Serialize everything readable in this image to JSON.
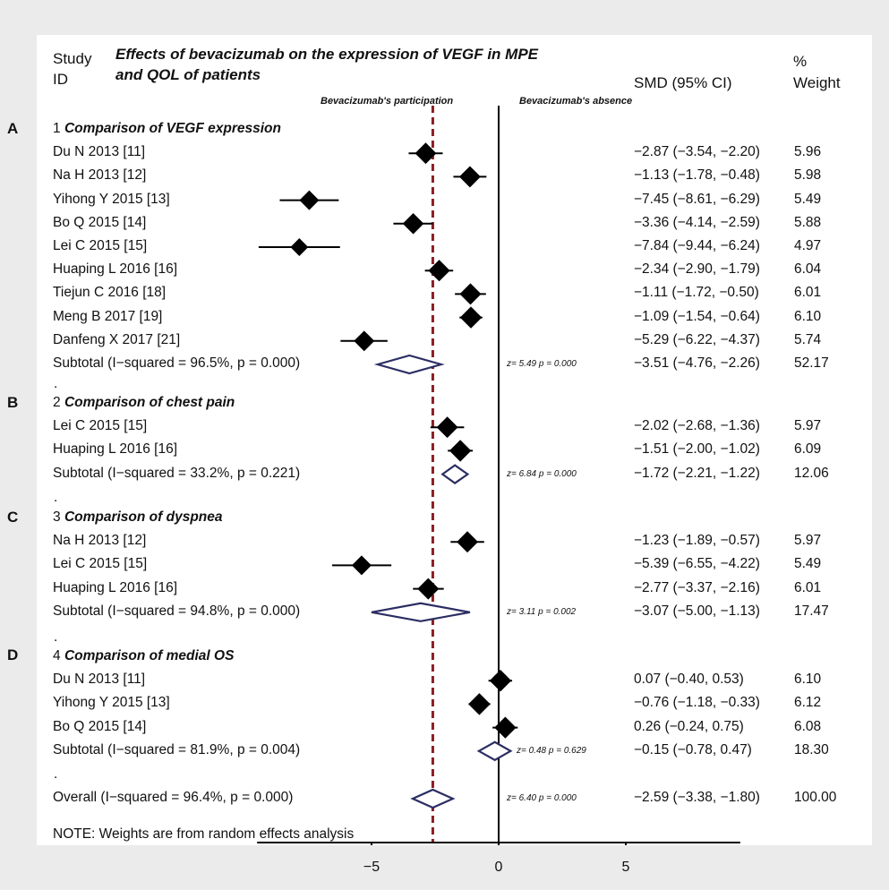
{
  "header": {
    "study_label_1": "Study",
    "study_label_2": "ID",
    "title_line1": "Effects of bevacizumab on the expression of VEGF in MPE",
    "title_line2": "and QOL of patients",
    "smd_label": "SMD (95% CI)",
    "weight_label_1": "%",
    "weight_label_2": "Weight",
    "left_region_label": "Bevacizumab's participation",
    "right_region_label": "Bevacizumab's absence"
  },
  "panel_letters": [
    "A",
    "B",
    "C",
    "D"
  ],
  "dot": ".",
  "note": "NOTE: Weights are from random effects analysis",
  "chart_data": {
    "type": "forest",
    "x_ticks": [
      -5,
      0,
      5
    ],
    "x_tick_labels": [
      "−5",
      "0",
      "5"
    ],
    "xlim": [
      -9.5,
      9.5
    ],
    "null_line": 0,
    "overall_line": -2.59,
    "groups": [
      {
        "letter": "A",
        "number": "1",
        "name": "Comparison of VEGF expression",
        "studies": [
          {
            "label": "Du N 2013 [11]",
            "smd": -2.87,
            "lo": -3.54,
            "hi": -2.2,
            "ci": "−2.87 (−3.54, −2.20)",
            "weight": "5.96"
          },
          {
            "label": "Na H 2013 [12]",
            "smd": -1.13,
            "lo": -1.78,
            "hi": -0.48,
            "ci": "−1.13 (−1.78, −0.48)",
            "weight": "5.98"
          },
          {
            "label": "Yihong Y 2015 [13]",
            "smd": -7.45,
            "lo": -8.61,
            "hi": -6.29,
            "ci": "−7.45 (−8.61, −6.29)",
            "weight": "5.49"
          },
          {
            "label": "Bo Q 2015 [14]",
            "smd": -3.36,
            "lo": -4.14,
            "hi": -2.59,
            "ci": "−3.36 (−4.14, −2.59)",
            "weight": "5.88"
          },
          {
            "label": "Lei C 2015 [15]",
            "smd": -7.84,
            "lo": -9.44,
            "hi": -6.24,
            "ci": "−7.84 (−9.44, −6.24)",
            "weight": "4.97"
          },
          {
            "label": "Huaping L 2016 [16]",
            "smd": -2.34,
            "lo": -2.9,
            "hi": -1.79,
            "ci": "−2.34 (−2.90, −1.79)",
            "weight": "6.04"
          },
          {
            "label": "Tiejun C 2016 [18]",
            "smd": -1.11,
            "lo": -1.72,
            "hi": -0.5,
            "ci": "−1.11 (−1.72, −0.50)",
            "weight": "6.01"
          },
          {
            "label": "Meng B 2017 [19]",
            "smd": -1.09,
            "lo": -1.54,
            "hi": -0.64,
            "ci": "−1.09 (−1.54, −0.64)",
            "weight": "6.10"
          },
          {
            "label": "Danfeng X 2017 [21]",
            "smd": -5.29,
            "lo": -6.22,
            "hi": -4.37,
            "ci": "−5.29 (−6.22, −4.37)",
            "weight": "5.74"
          }
        ],
        "subtotal": {
          "label": "Subtotal  (I−squared = 96.5%, p = 0.000)",
          "smd": -3.51,
          "lo": -4.76,
          "hi": -2.26,
          "ci": "−3.51 (−4.76, −2.26)",
          "weight": "52.17",
          "z": "z=  5.49   p = 0.000"
        }
      },
      {
        "letter": "B",
        "number": "2",
        "name": "Comparison of chest pain",
        "studies": [
          {
            "label": "Lei C 2015 [15]",
            "smd": -2.02,
            "lo": -2.68,
            "hi": -1.36,
            "ci": "−2.02 (−2.68, −1.36)",
            "weight": "5.97"
          },
          {
            "label": "Huaping L 2016 [16]",
            "smd": -1.51,
            "lo": -2.0,
            "hi": -1.02,
            "ci": "−1.51 (−2.00, −1.02)",
            "weight": "6.09"
          }
        ],
        "subtotal": {
          "label": "Subtotal  (I−squared = 33.2%, p = 0.221)",
          "smd": -1.72,
          "lo": -2.21,
          "hi": -1.22,
          "ci": "−1.72 (−2.21, −1.22)",
          "weight": "12.06",
          "z": "z=  6.84   p = 0.000"
        }
      },
      {
        "letter": "C",
        "number": "3",
        "name": "Comparison of dyspnea",
        "studies": [
          {
            "label": "Na H 2013 [12]",
            "smd": -1.23,
            "lo": -1.89,
            "hi": -0.57,
            "ci": "−1.23 (−1.89, −0.57)",
            "weight": "5.97"
          },
          {
            "label": "Lei C 2015 [15]",
            "smd": -5.39,
            "lo": -6.55,
            "hi": -4.22,
            "ci": "−5.39 (−6.55, −4.22)",
            "weight": "5.49"
          },
          {
            "label": "Huaping L 2016 [16]",
            "smd": -2.77,
            "lo": -3.37,
            "hi": -2.16,
            "ci": "−2.77 (−3.37, −2.16)",
            "weight": "6.01"
          }
        ],
        "subtotal": {
          "label": "Subtotal  (I−squared = 94.8%, p = 0.000)",
          "smd": -3.07,
          "lo": -5.0,
          "hi": -1.13,
          "ci": "−3.07 (−5.00, −1.13)",
          "weight": "17.47",
          "z": "z=  3.11   p = 0.002"
        }
      },
      {
        "letter": "D",
        "number": "4",
        "name": "Comparison of medial OS",
        "studies": [
          {
            "label": "Du N 2013 [11]",
            "smd": 0.07,
            "lo": -0.4,
            "hi": 0.53,
            "ci": "0.07 (−0.40, 0.53)",
            "weight": "6.10"
          },
          {
            "label": "Yihong Y 2015 [13]",
            "smd": -0.76,
            "lo": -1.18,
            "hi": -0.33,
            "ci": "−0.76 (−1.18, −0.33)",
            "weight": "6.12"
          },
          {
            "label": "Bo Q 2015 [14]",
            "smd": 0.26,
            "lo": -0.24,
            "hi": 0.75,
            "ci": "0.26 (−0.24, 0.75)",
            "weight": "6.08"
          }
        ],
        "subtotal": {
          "label": "Subtotal  (I−squared = 81.9%, p = 0.004)",
          "smd": -0.15,
          "lo": -0.78,
          "hi": 0.47,
          "ci": "−0.15 (−0.78, 0.47)",
          "weight": "18.30",
          "z": "z=  0.48   p = 0.629"
        }
      }
    ],
    "overall": {
      "label": "Overall  (I−squared = 96.4%, p = 0.000)",
      "smd": -2.59,
      "lo": -3.38,
      "hi": -1.8,
      "ci": "−2.59 (−3.38, −1.80)",
      "weight": "100.00",
      "z": "z=  6.40   p = 0.000"
    },
    "colors": {
      "marker": "#000000",
      "diamond": "#2b2d63",
      "overall_line": "#8b1f24",
      "axis": "#000000"
    }
  }
}
